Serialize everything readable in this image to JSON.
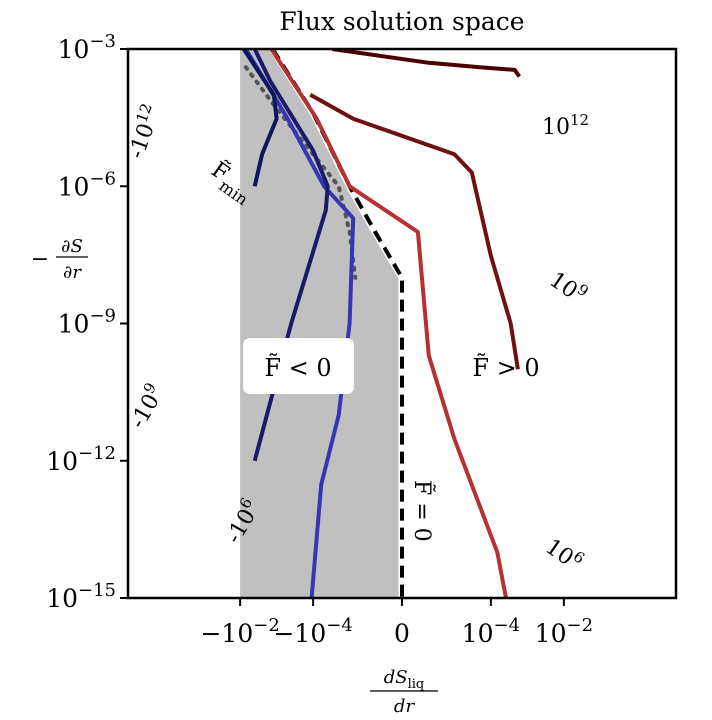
{
  "chart_data": {
    "type": "line",
    "title": "Flux solution space",
    "x_axis": {
      "label_main": "dS",
      "label_sub": "liq",
      "label_den": "dr",
      "scale": "symlog",
      "ticks": [
        {
          "value": -0.01,
          "base": "−10",
          "exp": "−2"
        },
        {
          "value": -0.0001,
          "base": "−10",
          "exp": "−4"
        },
        {
          "value": 0,
          "base": "0",
          "exp": ""
        },
        {
          "value": 0.0001,
          "base": "10",
          "exp": "−4"
        },
        {
          "value": 0.01,
          "base": "10",
          "exp": "−2"
        }
      ]
    },
    "y_axis": {
      "label_prefix": "−",
      "label_num": "∂S",
      "label_den": "∂r",
      "scale": "log",
      "ylim": [
        1e-15,
        0.001
      ],
      "ticks": [
        {
          "value": 1e-15,
          "base": "10",
          "exp": "−15"
        },
        {
          "value": 1e-12,
          "base": "10",
          "exp": "−12"
        },
        {
          "value": 1e-09,
          "base": "10",
          "exp": "−9"
        },
        {
          "value": 1e-06,
          "base": "10",
          "exp": "−6"
        },
        {
          "value": 0.001,
          "base": "10",
          "exp": "−3"
        }
      ]
    },
    "grid": false,
    "regions": {
      "negative": {
        "text": "F̃ < 0",
        "fill": "#c0c0c0"
      },
      "positive": {
        "text": "F̃ > 0"
      }
    },
    "annotations": [
      {
        "id": "fmin",
        "base": "F̃",
        "sub": "min"
      },
      {
        "id": "fzero",
        "text": "F̃ = 0"
      }
    ],
    "series": [
      {
        "name": "10¹²",
        "color": "#4a0000",
        "label_base": "10",
        "label_exp": "12",
        "dir": 1,
        "points": [
          [
            -3e-05,
            0.001
          ],
          [
            2e-06,
            0.0005
          ],
          [
            5e-05,
            0.0004
          ],
          [
            0.00045,
            0.00035
          ],
          [
            0.0006,
            0.00025
          ]
        ]
      },
      {
        "name": "10⁹",
        "color": "#701010",
        "label_base": "10",
        "label_exp": "9",
        "dir": 1,
        "points": [
          [
            -0.00012,
            0.0001
          ],
          [
            -8e-06,
            3e-05
          ],
          [
            1e-05,
            5e-06
          ],
          [
            3e-05,
            2e-06
          ],
          [
            0.0001,
            3e-08
          ],
          [
            0.00035,
            1e-09
          ],
          [
            0.00055,
            1e-10
          ]
        ]
      },
      {
        "name": "10⁶",
        "color": "#b83030",
        "label_base": "10",
        "label_exp": "6",
        "dir": 1,
        "points": [
          [
            -0.0014,
            0.001
          ],
          [
            -8e-05,
            3e-05
          ],
          [
            -1e-05,
            1e-06
          ],
          [
            1e-06,
            1e-07
          ],
          [
            2e-06,
            2e-10
          ],
          [
            1e-05,
            3e-12
          ],
          [
            0.00015,
            1e-14
          ],
          [
            0.00026,
            1e-15
          ]
        ]
      },
      {
        "name": "-10⁶",
        "color": "#3535b5",
        "label_base": "-10",
        "label_exp": "6",
        "dir": -1,
        "points": [
          [
            -0.007,
            0.001
          ],
          [
            -0.0005,
            3e-05
          ],
          [
            -5e-05,
            1e-06
          ],
          [
            -8e-06,
            2e-07
          ],
          [
            -1e-05,
            1e-09
          ],
          [
            -2e-05,
            1e-11
          ],
          [
            -6e-05,
            3e-13
          ],
          [
            -0.00011,
            1e-15
          ]
        ]
      },
      {
        "name": "-10⁹",
        "color": "#1a1a6a",
        "label_base": "-10",
        "label_exp": "9",
        "dir": -1,
        "points": [
          [
            -0.004,
            0.001
          ],
          [
            -0.0015,
            0.0002
          ],
          [
            -0.0001,
            6e-06
          ],
          [
            -4e-05,
            1e-06
          ],
          [
            -4.5e-05,
            3e-07
          ],
          [
            -0.0004,
            1e-09
          ],
          [
            -0.004,
            1e-12
          ]
        ]
      },
      {
        "name": "-10¹²",
        "color": "#0f1560",
        "label_base": "-10",
        "label_exp": "12",
        "dir": -1,
        "points": [
          [
            -0.008,
            0.001
          ],
          [
            -0.0012,
            0.0001
          ],
          [
            -0.001,
            3e-05
          ],
          [
            -0.0025,
            5e-06
          ],
          [
            -0.004,
            1e-06
          ]
        ]
      }
    ],
    "reference_curves": [
      {
        "id": "f-zero",
        "style": "black dashed on white",
        "color": "#000000",
        "points": [
          [
            -0.0013,
            0.001
          ],
          [
            -0.0001,
            4e-05
          ],
          [
            -1e-05,
            1e-06
          ],
          [
            -2e-06,
            1e-07
          ],
          [
            0,
            1e-08
          ],
          [
            0,
            1e-15
          ]
        ]
      },
      {
        "id": "f-min",
        "style": "dotted",
        "color": "#555555",
        "points": [
          [
            -0.007,
            0.0004
          ],
          [
            -0.001,
            5e-05
          ],
          [
            -0.0001,
            5e-06
          ],
          [
            -2e-05,
            1e-06
          ],
          [
            -1e-05,
            1e-07
          ],
          [
            -7e-06,
            1e-08
          ]
        ]
      }
    ],
    "shaded_boundary": [
      [
        -0.008,
        0.001
      ],
      [
        -0.004,
        0.001
      ],
      [
        -0.0013,
        0.001
      ],
      [
        -0.0001,
        4e-05
      ],
      [
        -1e-05,
        1e-06
      ],
      [
        -2e-06,
        1e-07
      ],
      [
        0,
        1e-08
      ],
      [
        0,
        1e-15
      ],
      [
        -0.01,
        1e-15
      ],
      [
        -0.01,
        0.001
      ]
    ]
  }
}
